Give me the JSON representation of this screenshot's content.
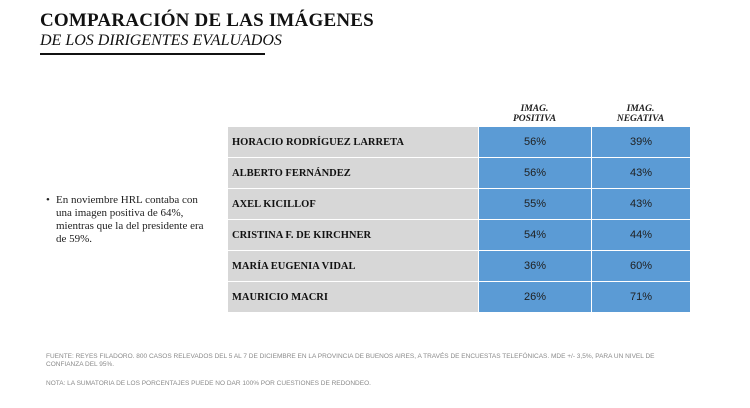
{
  "header": {
    "title": "COMPARACIÓN DE LAS IMÁGENES",
    "subtitle": "DE LOS DIRIGENTES EVALUADOS"
  },
  "side_note": {
    "bullet": "•",
    "text": "En noviembre HRL contaba con una imagen positiva de 64%, mientras que la del presidente era de 59%."
  },
  "chart_data": {
    "type": "table",
    "columns": [
      "IMAG. POSITIVA",
      "IMAG. NEGATIVA"
    ],
    "column_lines": [
      [
        "IMAG.",
        "POSITIVA"
      ],
      [
        "IMAG.",
        "NEGATIVA"
      ]
    ],
    "rows": [
      {
        "name": "HORACIO RODRÍGUEZ LARRETA",
        "positiva": "56%",
        "negativa": "39%"
      },
      {
        "name": "ALBERTO FERNÁNDEZ",
        "positiva": "56%",
        "negativa": "43%"
      },
      {
        "name": "AXEL KICILLOF",
        "positiva": "55%",
        "negativa": "43%"
      },
      {
        "name": "CRISTINA F. DE KIRCHNER",
        "positiva": "54%",
        "negativa": "44%"
      },
      {
        "name": "MARÍA EUGENIA VIDAL",
        "positiva": "36%",
        "negativa": "60%"
      },
      {
        "name": "MAURICIO MACRI",
        "positiva": "26%",
        "negativa": "71%"
      }
    ]
  },
  "footer": {
    "source": "FUENTE: REYES FILADORO. 800 CASOS RELEVADOS DEL 5 AL 7 DE DICIEMBRE EN LA PROVINCIA DE BUENOS AIRES, A TRAVÉS DE ENCUESTAS TELEFÓNICAS. MDE +/- 3,5%, PARA UN NIVEL DE CONFIANZA DEL 95%.",
    "note": "NOTA: LA SUMATORIA DE LOS PORCENTAJES PUEDE NO DAR 100% POR CUESTIONES DE REDONDEO."
  },
  "colors": {
    "name_cell": "#d7d7d7",
    "value_cell": "#5b9bd5"
  }
}
